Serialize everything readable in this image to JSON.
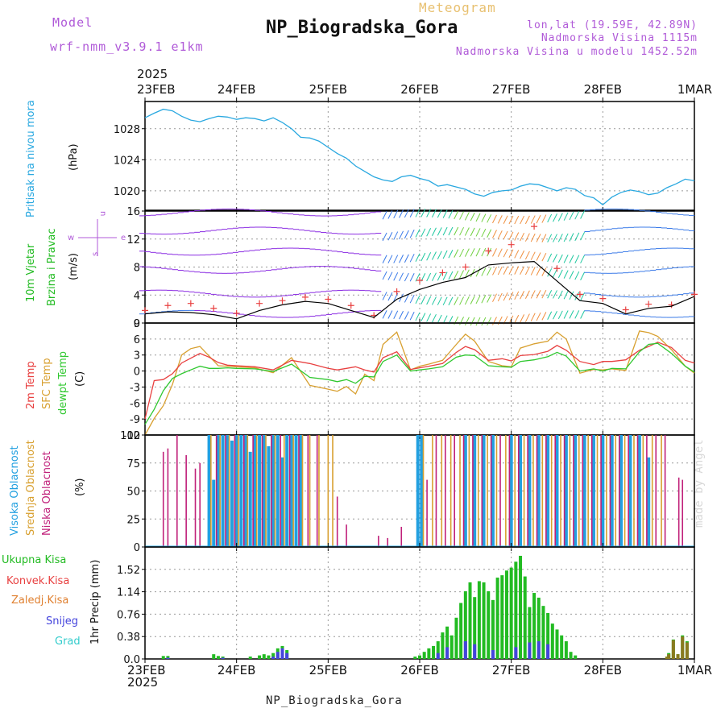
{
  "header": {
    "model_label": "Model",
    "model_name": "wrf-nmm_v3.9.1 e1km",
    "app_title": "Meteogram",
    "station_name": "NP_Biogradska_Gora",
    "lonlat": "lon,lat (19.59E, 42.89N)",
    "elevation": "Nadmorska Visina 1115m",
    "model_elevation": "Nadmorska Visina u modelu 1452.52m"
  },
  "footer": {
    "station_name": "NP_Biogradska_Gora"
  },
  "credit": "made by Angel",
  "time_axis": {
    "year": "2025",
    "ticks": [
      "23FEB",
      "24FEB",
      "25FEB",
      "26FEB",
      "27FEB",
      "28FEB",
      "1MAR"
    ]
  },
  "colors": {
    "pressure": "#29a8e0",
    "t2m": "#e84040",
    "tsfc": "#d8a030",
    "tdew": "#30c830",
    "wind_label": "#22bb22",
    "high_cloud": "#22a0e0",
    "mid_cloud": "#d8a030",
    "low_cloud": "#c0207a",
    "total_precip": "#22bb22",
    "conv_precip": "#e84040",
    "snow": "#4444dd",
    "frz_precip": "#e08030",
    "hail": "#33cccc",
    "purple_label": "#b05ad8"
  },
  "chart_data": [
    {
      "type": "line",
      "title": "",
      "ylabel": "Pritisak na nivou mora",
      "unit": "(hPa)",
      "ylim": [
        1017.5,
        1031.5
      ],
      "yticks": [
        1020,
        1024,
        1028
      ],
      "x": [
        0,
        0.1,
        0.2,
        0.3,
        0.4,
        0.5,
        0.6,
        0.7,
        0.8,
        0.9,
        1.0,
        1.1,
        1.2,
        1.3,
        1.4,
        1.5,
        1.6,
        1.7,
        1.8,
        1.9,
        2.0,
        2.1,
        2.2,
        2.3,
        2.4,
        2.5,
        2.6,
        2.7,
        2.8,
        2.9,
        3.0,
        3.1,
        3.2,
        3.3,
        3.4,
        3.5,
        3.6,
        3.7,
        3.8,
        3.9,
        4.0,
        4.1,
        4.2,
        4.3,
        4.4,
        4.5,
        4.6,
        4.7,
        4.8,
        4.9,
        5.0,
        5.1,
        5.2,
        5.3,
        5.4,
        5.5,
        5.6,
        5.7,
        5.8,
        5.9,
        6.0
      ],
      "values": [
        1029.4,
        1030.0,
        1030.5,
        1030.3,
        1029.6,
        1029.1,
        1028.9,
        1029.3,
        1029.6,
        1029.5,
        1029.2,
        1029.4,
        1029.3,
        1029.0,
        1029.4,
        1028.8,
        1028.0,
        1026.9,
        1026.8,
        1026.4,
        1025.6,
        1024.8,
        1024.2,
        1023.2,
        1022.5,
        1021.8,
        1021.4,
        1021.2,
        1021.8,
        1022.0,
        1021.6,
        1021.3,
        1020.6,
        1020.8,
        1020.5,
        1020.2,
        1019.6,
        1019.3,
        1019.8,
        1020.0,
        1020.1,
        1020.6,
        1020.9,
        1020.8,
        1020.4,
        1020.0,
        1020.4,
        1020.2,
        1019.4,
        1019.1,
        1018.2,
        1019.2,
        1019.8,
        1020.1,
        1019.9,
        1019.5,
        1019.7,
        1020.4,
        1020.9,
        1021.5,
        1021.3
      ],
      "xlim": [
        0,
        6
      ]
    },
    {
      "type": "line",
      "title": "",
      "ylabel": "10m Vjetar Brzina i Pravac",
      "unit": "(m/s)",
      "ylim": [
        0,
        16
      ],
      "yticks": [
        0,
        4,
        8,
        12,
        16
      ],
      "compass": [
        "w",
        "e",
        "n",
        "s"
      ],
      "x": [
        0,
        0.25,
        0.5,
        0.75,
        1.0,
        1.25,
        1.5,
        1.75,
        2.0,
        2.25,
        2.5,
        2.75,
        3.0,
        3.25,
        3.5,
        3.75,
        4.0,
        4.25,
        4.5,
        4.75,
        5.0,
        5.25,
        5.5,
        5.75,
        6.0
      ],
      "values": [
        1.3,
        1.6,
        1.5,
        1.2,
        0.6,
        1.8,
        2.6,
        3.1,
        2.8,
        1.8,
        0.8,
        3.4,
        4.8,
        5.8,
        6.5,
        8.3,
        8.6,
        8.8,
        6.0,
        3.2,
        2.8,
        1.3,
        2.1,
        2.4,
        3.8
      ],
      "gust_values": [
        1.8,
        2.5,
        2.8,
        2.1,
        1.4,
        2.8,
        3.2,
        3.7,
        3.4,
        2.5,
        1.1,
        4.5,
        6.1,
        7.2,
        8.0,
        10.3,
        11.2,
        13.8,
        7.8,
        4.1,
        3.5,
        1.9,
        2.7,
        2.6,
        4.1
      ],
      "xlim": [
        0,
        6
      ]
    },
    {
      "type": "line",
      "title": "",
      "ylabel": "2m Temp / SFC Temp / dewpt Temp",
      "unit": "(C)",
      "ylim": [
        -12,
        9
      ],
      "yticks": [
        -12,
        -9,
        -6,
        -3,
        0,
        3,
        6,
        9
      ],
      "x": [
        0,
        0.1,
        0.2,
        0.3,
        0.4,
        0.5,
        0.6,
        0.7,
        0.8,
        0.9,
        1.0,
        1.2,
        1.4,
        1.6,
        1.8,
        2.0,
        2.1,
        2.2,
        2.3,
        2.4,
        2.5,
        2.6,
        2.75,
        2.9,
        3.0,
        3.1,
        3.25,
        3.4,
        3.5,
        3.6,
        3.75,
        3.9,
        4.0,
        4.1,
        4.25,
        4.4,
        4.5,
        4.6,
        4.75,
        4.9,
        5.0,
        5.1,
        5.25,
        5.4,
        5.5,
        5.6,
        5.75,
        5.9,
        6.0
      ],
      "series": [
        {
          "name": "2m Temp",
          "values": [
            -9,
            -1.8,
            -1.6,
            -0.5,
            1.5,
            2.4,
            3.3,
            2.6,
            1.6,
            1.1,
            1.0,
            0.8,
            0.2,
            2.0,
            1.4,
            0.5,
            0.2,
            0.5,
            0.8,
            0.2,
            -0.2,
            2.5,
            3.6,
            0.3,
            0.6,
            0.9,
            1.4,
            3.5,
            4.6,
            4.0,
            2.0,
            2.3,
            1.9,
            2.9,
            3.1,
            3.7,
            4.8,
            3.9,
            1.8,
            1.2,
            1.8,
            1.8,
            2.1,
            3.9,
            4.6,
            5.4,
            4.4,
            2.0,
            1.5
          ]
        },
        {
          "name": "SFC Temp",
          "values": [
            -12,
            -8.9,
            -6.5,
            -2.5,
            3.0,
            4.2,
            4.6,
            2.8,
            1.0,
            0.9,
            0.8,
            0.6,
            -0.3,
            2.5,
            -2.7,
            -3.4,
            -3.8,
            -2.9,
            -4.3,
            -0.6,
            -1.8,
            5.0,
            7.3,
            0.2,
            0.9,
            1.3,
            2.0,
            5.0,
            6.9,
            5.6,
            1.8,
            1.0,
            0.8,
            4.3,
            5.1,
            5.6,
            7.3,
            6.0,
            -0.4,
            0.3,
            0.2,
            0.4,
            0.1,
            7.5,
            7.2,
            6.5,
            4.0,
            0.9,
            -0.4
          ]
        },
        {
          "name": "dewpt Temp",
          "values": [
            -10,
            -7.2,
            -3.7,
            -1.4,
            -0.5,
            0.2,
            0.9,
            0.5,
            0.5,
            0.6,
            0.5,
            0.4,
            -0.1,
            1.3,
            -1.2,
            -1.6,
            -2.0,
            -1.6,
            -2.3,
            -1.0,
            -1.1,
            1.8,
            3.0,
            0.0,
            0.2,
            0.4,
            0.8,
            2.6,
            3.0,
            2.9,
            1.0,
            0.8,
            0.7,
            1.8,
            2.1,
            2.7,
            3.5,
            2.8,
            0.0,
            0.4,
            0.0,
            0.5,
            0.4,
            3.6,
            5.0,
            5.2,
            3.3,
            0.9,
            -0.2
          ]
        }
      ],
      "xlim": [
        0,
        6
      ]
    },
    {
      "type": "bar",
      "title": "",
      "ylabel": "Visoka Oblacnost / Srednja Oblacnost / Niska Oblacnost",
      "unit": "(%)",
      "ylim": [
        0,
        100
      ],
      "yticks": [
        0,
        25,
        50,
        75,
        100
      ],
      "xlim": [
        0,
        6
      ],
      "series": [
        {
          "name": "Visoka Oblacnost",
          "x": [
            0.7,
            0.75,
            0.8,
            0.85,
            0.9,
            0.95,
            1.0,
            1.05,
            1.1,
            1.15,
            1.2,
            1.25,
            1.3,
            1.35,
            1.4,
            1.45,
            1.5,
            1.55,
            1.6,
            1.65,
            1.7,
            2.98,
            3.02,
            3.5,
            3.6,
            3.7,
            3.8,
            4.0,
            4.1,
            4.2,
            4.3,
            4.4,
            4.5,
            4.6,
            4.7,
            4.8,
            4.9,
            5.0,
            5.1,
            5.2,
            5.3,
            5.4,
            5.5
          ],
          "values": [
            100,
            60,
            100,
            100,
            100,
            95,
            100,
            100,
            100,
            85,
            100,
            100,
            100,
            90,
            100,
            100,
            80,
            100,
            100,
            100,
            100,
            100,
            100,
            100,
            100,
            100,
            100,
            100,
            100,
            100,
            100,
            100,
            100,
            100,
            100,
            100,
            100,
            100,
            100,
            100,
            100,
            100,
            80
          ]
        },
        {
          "name": "Srednja Oblacnost",
          "x": [
            0.72,
            0.82,
            0.92,
            1.02,
            1.12,
            1.22,
            1.32,
            1.42,
            1.52,
            1.62,
            1.72,
            1.8,
            1.9,
            2.0,
            2.05,
            3.04,
            3.14,
            3.24,
            3.34,
            3.44,
            3.54,
            3.64,
            3.74,
            3.84,
            3.94,
            4.04,
            4.14,
            4.24,
            4.34,
            4.44,
            4.54,
            4.64,
            4.74,
            4.84,
            4.94,
            5.04,
            5.14,
            5.24,
            5.34,
            5.44,
            5.54,
            5.64
          ],
          "values": [
            100,
            100,
            100,
            100,
            100,
            100,
            100,
            100,
            100,
            100,
            100,
            100,
            100,
            100,
            100,
            100,
            100,
            100,
            100,
            100,
            100,
            100,
            100,
            100,
            100,
            100,
            100,
            100,
            100,
            100,
            100,
            100,
            100,
            100,
            100,
            100,
            100,
            100,
            100,
            100,
            100,
            100
          ]
        },
        {
          "name": "Niska Oblacnost",
          "x": [
            0.2,
            0.25,
            0.35,
            0.45,
            0.55,
            0.6,
            0.78,
            0.88,
            0.98,
            1.08,
            1.18,
            1.28,
            1.38,
            1.48,
            1.58,
            1.68,
            1.78,
            1.88,
            2.1,
            2.2,
            2.55,
            2.65,
            2.8,
            3.08,
            3.18,
            3.28,
            3.38,
            3.48,
            3.58,
            3.68,
            3.78,
            3.88,
            3.98,
            4.08,
            4.18,
            4.28,
            4.38,
            4.48,
            4.58,
            4.68,
            4.78,
            4.88,
            4.98,
            5.08,
            5.18,
            5.28,
            5.38,
            5.48,
            5.58,
            5.68,
            5.83,
            5.87
          ],
          "values": [
            85,
            88,
            100,
            82,
            70,
            75,
            100,
            100,
            100,
            100,
            100,
            100,
            100,
            100,
            100,
            100,
            100,
            100,
            45,
            20,
            10,
            8,
            18,
            60,
            100,
            100,
            100,
            100,
            100,
            100,
            100,
            100,
            100,
            100,
            100,
            100,
            100,
            100,
            100,
            100,
            100,
            100,
            100,
            100,
            100,
            100,
            100,
            100,
            100,
            100,
            62,
            60
          ]
        }
      ]
    },
    {
      "type": "bar",
      "title": "",
      "ylabel": "1hr Precip",
      "unit": "(mm)",
      "ylim": [
        0,
        1.9
      ],
      "yticks": [
        0,
        0.38,
        0.76,
        1.14,
        1.52
      ],
      "legend": [
        "Ukupna Kisa",
        "Konvek.Kisa",
        "Zaledj.Kisa",
        "Snijeg",
        "Grad"
      ],
      "xlim": [
        0,
        6
      ],
      "series": [
        {
          "name": "Ukupna Kisa",
          "x": [
            0.2,
            0.25,
            0.75,
            0.8,
            0.85,
            1.15,
            1.25,
            1.3,
            1.35,
            1.4,
            1.45,
            1.5,
            1.55,
            2.95,
            3.0,
            3.05,
            3.1,
            3.15,
            3.2,
            3.25,
            3.3,
            3.35,
            3.4,
            3.45,
            3.5,
            3.55,
            3.6,
            3.65,
            3.7,
            3.75,
            3.8,
            3.85,
            3.9,
            3.95,
            4.0,
            4.05,
            4.1,
            4.15,
            4.2,
            4.25,
            4.3,
            4.35,
            4.4,
            4.45,
            4.5,
            4.55,
            4.6,
            4.65,
            4.7,
            5.7,
            5.72,
            5.77,
            5.82,
            5.87,
            5.92
          ],
          "values": [
            0.05,
            0.05,
            0.08,
            0.05,
            0.04,
            0.04,
            0.06,
            0.08,
            0.06,
            0.1,
            0.18,
            0.22,
            0.15,
            0.04,
            0.06,
            0.12,
            0.18,
            0.22,
            0.3,
            0.45,
            0.55,
            0.4,
            0.7,
            0.95,
            1.15,
            1.3,
            1.05,
            1.32,
            1.3,
            1.15,
            1.0,
            1.38,
            1.42,
            1.5,
            1.55,
            1.65,
            1.75,
            1.4,
            0.88,
            1.12,
            1.04,
            0.9,
            0.78,
            0.6,
            0.5,
            0.4,
            0.3,
            0.12,
            0.06,
            0.04,
            0.1,
            0.33,
            0.08,
            0.4,
            0.3
          ]
        },
        {
          "name": "Snijeg",
          "x": [
            0.25,
            0.85,
            1.4,
            1.45,
            1.5,
            1.55,
            3.2,
            3.3,
            3.5,
            3.6,
            3.8,
            4.05,
            4.2,
            4.3,
            4.4
          ],
          "values": [
            0.02,
            0.02,
            0.04,
            0.12,
            0.18,
            0.1,
            0.1,
            0.2,
            0.3,
            0.25,
            0.15,
            0.2,
            0.28,
            0.3,
            0.25
          ]
        },
        {
          "name": "Zaledj.Kisa",
          "x": [
            5.7,
            5.72,
            5.77,
            5.82,
            5.87,
            5.92
          ],
          "values": [
            0.04,
            0.08,
            0.32,
            0.08,
            0.38,
            0.28
          ]
        }
      ]
    }
  ]
}
